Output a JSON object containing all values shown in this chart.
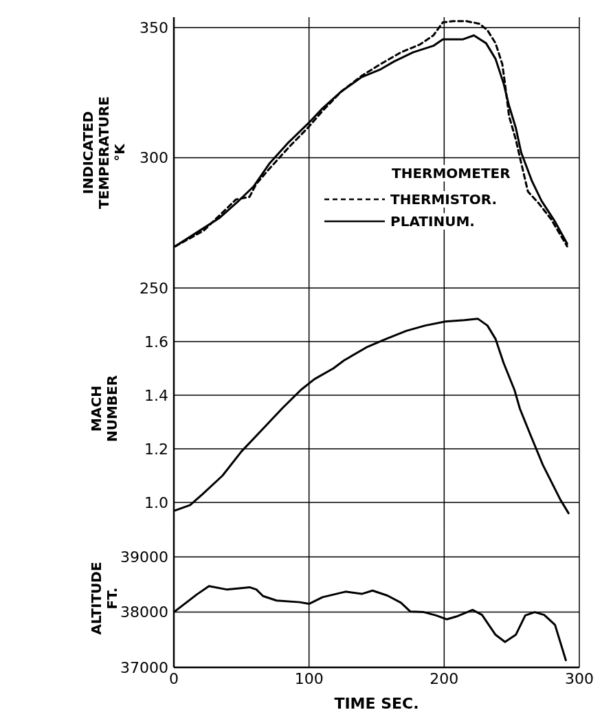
{
  "chart_data": [
    {
      "type": "line",
      "ylabel": "INDICATED\nTEMPERATURE\n°K",
      "legend_title": "THERMOMETER",
      "legend": "bottom right",
      "grid": true,
      "marker": "none",
      "tick_labels": "y",
      "xlim": [
        0,
        300
      ],
      "xticks": [
        0,
        100,
        200,
        300
      ],
      "ylim": [
        250,
        354
      ],
      "yticks": [
        250,
        300,
        350
      ],
      "series": [
        {
          "name": "THERMISTOR.",
          "color": "#000000",
          "line_style": "dashed",
          "x": [
            1,
            22,
            46,
            56,
            61,
            71,
            85,
            100,
            110,
            124,
            139,
            153,
            168,
            182,
            192,
            199,
            207,
            216,
            226,
            232,
            238,
            243,
            245,
            248,
            253,
            257,
            262,
            270,
            279,
            291
          ],
          "values": [
            266,
            272,
            284,
            285,
            290,
            296,
            304,
            312,
            318,
            325.5,
            331.5,
            336,
            340.5,
            343.5,
            347,
            352,
            352.5,
            352.5,
            351.5,
            349,
            344,
            336,
            328.5,
            316,
            307,
            298,
            287,
            282.5,
            276.5,
            266
          ]
        },
        {
          "name": "PLATINUM.",
          "color": "#000000",
          "line_style": "solid",
          "x": [
            1,
            22,
            34,
            47,
            59,
            71,
            85,
            100,
            110,
            124,
            139,
            153,
            163,
            177,
            192,
            199,
            214,
            222,
            231,
            238,
            244,
            248,
            253,
            257,
            265,
            272,
            282,
            291
          ],
          "values": [
            266,
            273,
            277,
            283,
            289,
            298,
            306,
            313.5,
            319,
            325.5,
            331,
            334,
            337,
            340.5,
            343,
            345.5,
            345.5,
            347,
            344,
            338,
            328.5,
            320,
            311.5,
            302,
            291,
            283.5,
            275.5,
            267
          ]
        }
      ]
    },
    {
      "type": "line",
      "ylabel": "MACH\nNUMBER",
      "grid": true,
      "marker": "none",
      "tick_labels": "y",
      "xlim": [
        0,
        300
      ],
      "xticks": [
        0,
        100,
        200,
        300
      ],
      "ylim": [
        0.9,
        1.8
      ],
      "yticks": [
        {
          "value": 1.0,
          "label": "1.0"
        },
        1.2,
        1.4,
        1.6
      ],
      "series": [
        {
          "color": "#000000",
          "x": [
            1,
            12,
            21,
            36,
            50,
            65,
            80,
            94,
            104,
            118,
            126,
            143,
            157,
            172,
            186,
            201,
            215,
            225,
            232,
            238,
            244,
            252,
            256,
            264,
            273,
            286,
            292
          ],
          "values": [
            0.97,
            0.99,
            1.03,
            1.1,
            1.19,
            1.27,
            1.35,
            1.42,
            1.46,
            1.5,
            1.53,
            1.58,
            1.61,
            1.64,
            1.66,
            1.675,
            1.68,
            1.685,
            1.66,
            1.61,
            1.52,
            1.42,
            1.35,
            1.25,
            1.14,
            1.01,
            0.96
          ]
        }
      ]
    },
    {
      "type": "line",
      "ylabel": "ALTITUDE\nFT.",
      "xlabel": "TIME SEC.",
      "grid": true,
      "marker": "none",
      "xlim": [
        0,
        300
      ],
      "xticks": [
        0,
        100,
        200,
        300
      ],
      "ylim": [
        37000,
        39500
      ],
      "yticks": [
        37000,
        38000,
        39000
      ],
      "series": [
        {
          "color": "#000000",
          "x": [
            0,
            17,
            26,
            39,
            56,
            61,
            66,
            76,
            93,
            100,
            110,
            127,
            139,
            147,
            158,
            168,
            175,
            185,
            194,
            202,
            209,
            221,
            228,
            238,
            245,
            253,
            260,
            267,
            274,
            282,
            290
          ],
          "values": [
            38000,
            38320,
            38470,
            38410,
            38450,
            38410,
            38290,
            38210,
            38180,
            38150,
            38270,
            38370,
            38330,
            38390,
            38300,
            38170,
            38010,
            38000,
            37940,
            37870,
            37920,
            38040,
            37950,
            37590,
            37460,
            37590,
            37940,
            38000,
            37950,
            37770,
            37130
          ]
        }
      ]
    }
  ]
}
